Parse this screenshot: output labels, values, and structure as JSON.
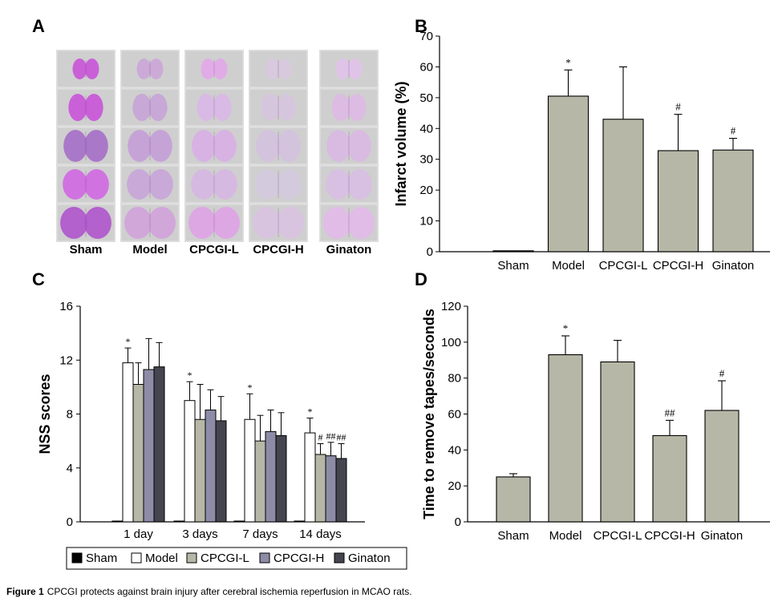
{
  "panels": {
    "a": "A",
    "b": "B",
    "c": "C",
    "d": "D"
  },
  "caption": {
    "label": "Figure 1",
    "text": "CPCGI protects against brain injury after cerebral ischemia reperfusion in MCAO rats."
  },
  "panel_a": {
    "columns": [
      "Sham",
      "Model",
      "CPCGI-L",
      "CPCGI-H",
      "Ginaton"
    ],
    "stain_colors": {
      "healthy": "#c85ad8",
      "pale": "#dcbbe3",
      "background": "#d6d6d6"
    }
  },
  "chart_data": [
    {
      "id": "B",
      "type": "bar",
      "categories": [
        "Sham",
        "Model",
        "CPCGI-L",
        "CPCGI-H",
        "Ginaton"
      ],
      "values": [
        0.3,
        50.5,
        43,
        32.8,
        33
      ],
      "errors": [
        0,
        8.5,
        17,
        11.8,
        3.8
      ],
      "annotations": [
        "",
        "*",
        "",
        "#",
        "#"
      ],
      "ylabel": "Infarct volume (%)",
      "xlabel": "",
      "ylim": [
        0,
        70
      ],
      "yticks": [
        "0",
        "10",
        "20",
        "30",
        "40",
        "50",
        "60",
        "70"
      ],
      "bar_color": "#b7b7a7"
    },
    {
      "id": "C",
      "type": "bar",
      "categories": [
        "1 day",
        "3 days",
        "7 days",
        "14 days"
      ],
      "series": [
        {
          "name": "Sham",
          "color": "#000000",
          "values": [
            0,
            0,
            0,
            0
          ],
          "errors": [
            0,
            0,
            0,
            0
          ]
        },
        {
          "name": "Model",
          "color": "#ffffff",
          "values": [
            11.8,
            9.0,
            7.6,
            6.6
          ],
          "errors": [
            1.1,
            1.4,
            1.9,
            1.1
          ]
        },
        {
          "name": "CPCGI-L",
          "color": "#b7b7a7",
          "values": [
            10.2,
            7.6,
            6.0,
            5.0
          ],
          "errors": [
            1.6,
            2.6,
            1.9,
            0.8
          ]
        },
        {
          "name": "CPCGI-H",
          "color": "#8c8ca6",
          "values": [
            11.3,
            8.3,
            6.7,
            4.9
          ],
          "errors": [
            2.3,
            1.5,
            1.6,
            1.0
          ]
        },
        {
          "name": "Ginaton",
          "color": "#454550",
          "values": [
            11.5,
            7.5,
            6.4,
            4.7
          ],
          "errors": [
            1.8,
            1.8,
            1.7,
            1.1
          ]
        }
      ],
      "annotations": [
        {
          "category": "1 day",
          "series": "Model",
          "text": "*"
        },
        {
          "category": "3 days",
          "series": "Model",
          "text": "*"
        },
        {
          "category": "7 days",
          "series": "Model",
          "text": "*"
        },
        {
          "category": "14 days",
          "series": "Model",
          "text": "*"
        },
        {
          "category": "14 days",
          "series": "CPCGI-L",
          "text": "#"
        },
        {
          "category": "14 days",
          "series": "CPCGI-H",
          "text": "##"
        },
        {
          "category": "14 days",
          "series": "Ginaton",
          "text": "##"
        }
      ],
      "ylabel": "NSS scores",
      "xlabel": "",
      "ylim": [
        0,
        16
      ],
      "yticks": [
        "0",
        "4",
        "8",
        "12",
        "16"
      ],
      "legend": "bottom"
    },
    {
      "id": "D",
      "type": "bar",
      "categories": [
        "Sham",
        "Model",
        "CPCGI-L",
        "CPCGI-H",
        "Ginaton"
      ],
      "values": [
        25,
        93,
        89,
        48,
        62
      ],
      "errors": [
        1.8,
        10.5,
        12,
        8.5,
        16.5
      ],
      "annotations": [
        "",
        "*",
        "",
        "##",
        "#"
      ],
      "ylabel": "Time to remove tapes/seconds",
      "xlabel": "",
      "ylim": [
        0,
        120
      ],
      "yticks": [
        "0",
        "20",
        "40",
        "60",
        "80",
        "100",
        "120"
      ],
      "bar_color": "#b7b7a7"
    }
  ]
}
